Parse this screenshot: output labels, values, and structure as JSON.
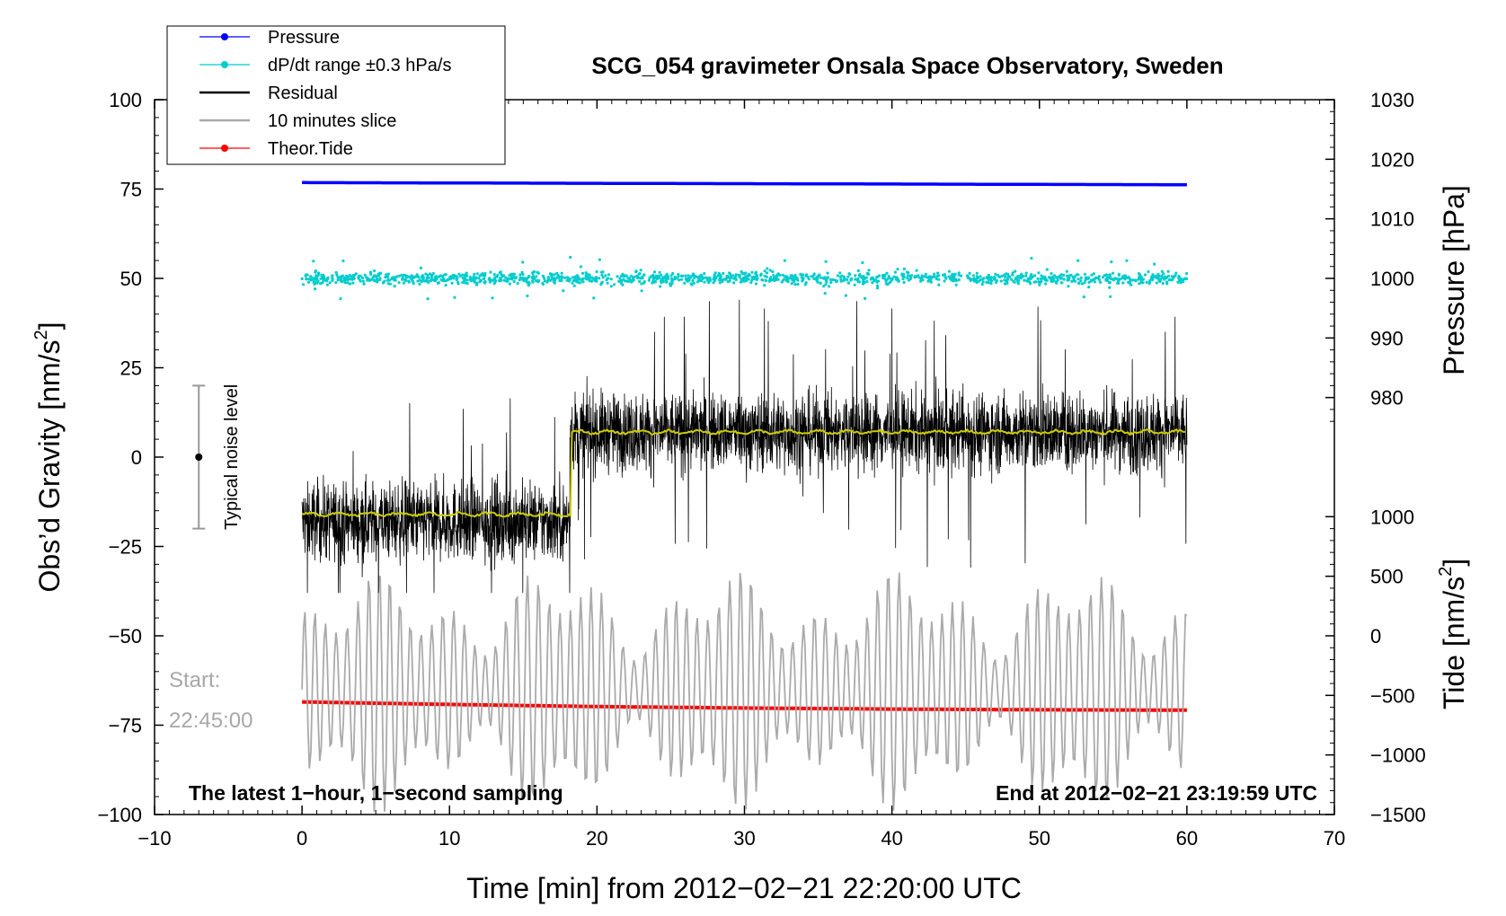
{
  "chart_data": {
    "type": "line",
    "title": "SCG_054 gravimeter Onsala Space Observatory, Sweden",
    "xlabel": "Time [min] from 2012−02−21 22:20:00 UTC",
    "ylabel": "Obs’d Gravity [nm/s²]",
    "ylabel_parts": {
      "pre": "Obs’d Gravity [nm/s",
      "sup": "2",
      "post": "]"
    },
    "pressure_axis_label": "Pressure [hPa]",
    "tide_axis_label_parts": {
      "pre": "Tide [nm/s",
      "sup": "2",
      "post": "]"
    },
    "xlim": [
      -10,
      70
    ],
    "ylim": [
      -100,
      100
    ],
    "x_ticks": [
      -10,
      0,
      10,
      20,
      30,
      40,
      50,
      60,
      70
    ],
    "x_tick_labels": [
      "−10",
      "0",
      "10",
      "20",
      "30",
      "40",
      "50",
      "60",
      "70"
    ],
    "y_ticks": [
      100,
      75,
      50,
      25,
      0,
      -25,
      -50,
      -75,
      -100
    ],
    "y_tick_labels": [
      "100",
      "75",
      "50",
      "25",
      "0",
      "−25",
      "−50",
      "−75",
      "−100"
    ],
    "pressure_ticks": [
      1030,
      1020,
      1010,
      1000,
      990,
      980
    ],
    "pressure_tick_labels": [
      "1030",
      "1020",
      "1010",
      "1000",
      "990",
      "980"
    ],
    "pressure_axis_mapping": {
      "value_at_top": 1030,
      "value_at_y50": 1000,
      "gravity_units_per_hPa": 1.6667
    },
    "tide_ticks": [
      1000,
      500,
      0,
      -500,
      -1000,
      -1500
    ],
    "tide_tick_labels": [
      "1000",
      "500",
      "0",
      "−500",
      "−1000",
      "−1500"
    ],
    "tide_axis_mapping": {
      "value_at_bottom": -1500,
      "value_at_y_minus50": 0,
      "gravity_units_per_nm": 0.03333
    },
    "legend": [
      {
        "label": "Pressure",
        "color": "#0000ff",
        "marker": true
      },
      {
        "label": "dP/dt range ±0.3 hPa/s",
        "color": "#00cccc",
        "marker": true
      },
      {
        "label": "Residual",
        "color": "#000000",
        "marker": false
      },
      {
        "label": "10 minutes slice",
        "color": "#aaaaaa",
        "marker": false
      },
      {
        "label": "Theor.Tide",
        "color": "#ff0000",
        "marker": true
      }
    ],
    "legend_position": "top-left",
    "series": [
      {
        "name": "Pressure",
        "color": "#0000ff",
        "x": [
          0,
          10,
          20,
          30,
          40,
          50,
          60
        ],
        "y": [
          76.8,
          76.7,
          76.6,
          76.5,
          76.4,
          76.3,
          76.2
        ]
      },
      {
        "name": "dP/dt range ±0.3 hPa/s",
        "color": "#00cccc",
        "center": 50,
        "spread": 1.2,
        "outlier_extent": 6,
        "x_range": [
          0,
          60
        ]
      },
      {
        "name": "Residual",
        "color": "#000000",
        "x_range": [
          0,
          60
        ],
        "step_at": 18.2,
        "level_before": -18,
        "level_after": 7,
        "noise_amplitude_before": 9,
        "noise_amplitude_after": 9,
        "spike_max": 44,
        "spike_min": -38
      },
      {
        "name": "Residual mean",
        "color": "#cccc00",
        "x": [
          0,
          18.2,
          18.3,
          60
        ],
        "y": [
          -16,
          -16,
          7,
          7
        ]
      },
      {
        "name": "10 minutes slice",
        "color": "#aaaaaa",
        "x_range": [
          0,
          60
        ],
        "center": -65,
        "amplitude_range": [
          8,
          35
        ],
        "min": -100,
        "max": -28
      },
      {
        "name": "Theor.Tide",
        "color": "#ff0000",
        "x": [
          0,
          10,
          20,
          30,
          40,
          50,
          60
        ],
        "y": [
          -68.5,
          -69.2,
          -69.8,
          -70.2,
          -70.5,
          -70.7,
          -70.8
        ]
      }
    ],
    "annotations": {
      "start_label": "Start:",
      "start_time": "22:45:00",
      "noise_label": "Typical noise level",
      "noise_bar": {
        "x": -7,
        "center": 0,
        "half_range": 20
      },
      "bottom_left_note": "The latest 1−hour, 1−second sampling",
      "bottom_right_note": "End at 2012−02−21 23:19:59 UTC"
    }
  }
}
